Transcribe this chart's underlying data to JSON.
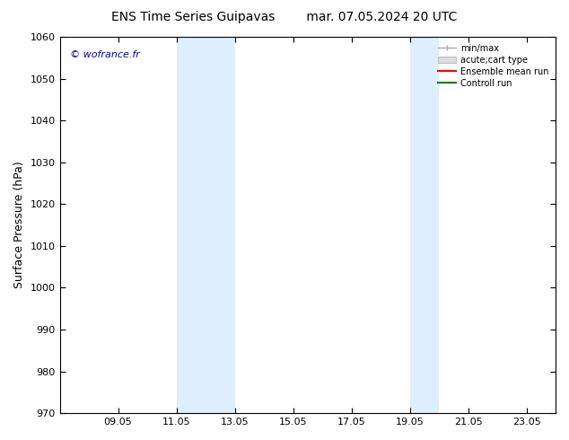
{
  "title_left": "ENS Time Series Guipavas",
  "title_right": "mar. 07.05.2024 20 UTC",
  "ylabel": "Surface Pressure (hPa)",
  "ylim": [
    970,
    1060
  ],
  "yticks": [
    970,
    980,
    990,
    1000,
    1010,
    1020,
    1030,
    1040,
    1050,
    1060
  ],
  "xlim": [
    7.0,
    24.0
  ],
  "xtick_labels": [
    "09.05",
    "11.05",
    "13.05",
    "15.05",
    "17.05",
    "19.05",
    "21.05",
    "23.05"
  ],
  "xtick_positions": [
    9,
    11,
    13,
    15,
    17,
    19,
    21,
    23
  ],
  "shaded_bands": [
    {
      "xmin": 11.0,
      "xmax": 13.0
    },
    {
      "xmin": 19.0,
      "xmax": 20.0
    }
  ],
  "band_color": "#ddeeff",
  "watermark_text": "© wofrance.fr",
  "watermark_color": "#0000cc",
  "legend_entries": [
    "min/max",
    "acute;cart type",
    "Ensemble mean run",
    "Controll run"
  ],
  "legend_colors_line": [
    "#aaaaaa",
    "#cccccc",
    "#ff0000",
    "#008000"
  ],
  "bg_color": "#ffffff",
  "title_fontsize": 10,
  "tick_fontsize": 8,
  "ylabel_fontsize": 9
}
